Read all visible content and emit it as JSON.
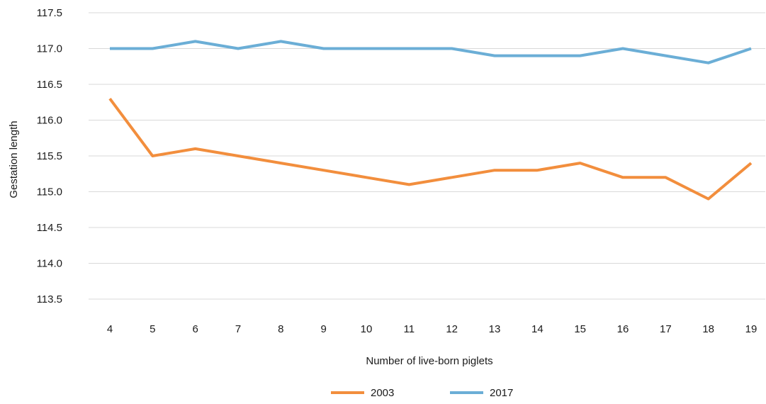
{
  "chart_data": {
    "type": "line",
    "title": "",
    "xlabel": "Number of live-born piglets",
    "ylabel": "Gestation length",
    "categories": [
      "4",
      "5",
      "6",
      "7",
      "8",
      "9",
      "10",
      "11",
      "12",
      "13",
      "14",
      "15",
      "16",
      "17",
      "18",
      "19"
    ],
    "y_ticks": [
      "113.5",
      "114.0",
      "114.5",
      "115.0",
      "115.5",
      "116.0",
      "116.5",
      "117.0",
      "117.5"
    ],
    "ylim": [
      113.5,
      117.5
    ],
    "grid": "horizontal",
    "legend_position": "bottom",
    "series": [
      {
        "name": "2003",
        "color": "#f28e3d",
        "values": [
          116.3,
          115.5,
          115.6,
          115.5,
          115.4,
          115.3,
          115.2,
          115.1,
          115.2,
          115.3,
          115.3,
          115.4,
          115.2,
          115.2,
          114.9,
          115.4
        ]
      },
      {
        "name": "2017",
        "color": "#6baed6",
        "values": [
          117.0,
          117.0,
          117.1,
          117.0,
          117.1,
          117.0,
          117.0,
          117.0,
          117.0,
          116.9,
          116.9,
          116.9,
          117.0,
          116.9,
          116.8,
          117.0
        ]
      }
    ]
  }
}
